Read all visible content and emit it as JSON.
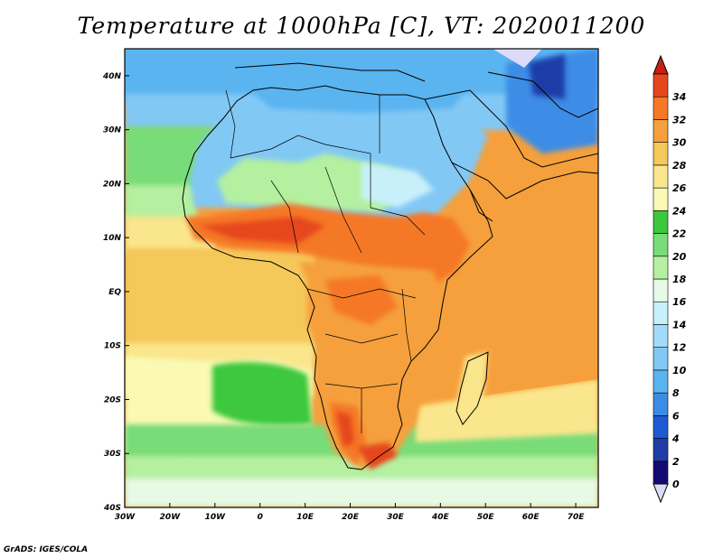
{
  "title": "Temperature at 1000hPa [C], VT: 2020011200",
  "credit": "GrADS: IGES/COLA",
  "map": {
    "lat_ticks": [
      {
        "value": 40,
        "label": "40N"
      },
      {
        "value": 30,
        "label": "30N"
      },
      {
        "value": 20,
        "label": "20N"
      },
      {
        "value": 10,
        "label": "10N"
      },
      {
        "value": 0,
        "label": "EQ"
      },
      {
        "value": -10,
        "label": "10S"
      },
      {
        "value": -20,
        "label": "20S"
      },
      {
        "value": -30,
        "label": "30S"
      },
      {
        "value": -40,
        "label": "40S"
      }
    ],
    "lon_ticks": [
      {
        "value": -30,
        "label": "30W"
      },
      {
        "value": -20,
        "label": "20W"
      },
      {
        "value": -10,
        "label": "10W"
      },
      {
        "value": 0,
        "label": "0"
      },
      {
        "value": 10,
        "label": "10E"
      },
      {
        "value": 20,
        "label": "20E"
      },
      {
        "value": 30,
        "label": "30E"
      },
      {
        "value": 40,
        "label": "40E"
      },
      {
        "value": 50,
        "label": "50E"
      },
      {
        "value": 60,
        "label": "60E"
      },
      {
        "value": 70,
        "label": "70E"
      }
    ],
    "lat_range": [
      -40,
      45
    ],
    "lon_range": [
      -30,
      75
    ]
  },
  "colorbar": {
    "labels": [
      "0",
      "2",
      "4",
      "6",
      "8",
      "10",
      "12",
      "14",
      "16",
      "18",
      "20",
      "22",
      "24",
      "26",
      "28",
      "30",
      "32",
      "34"
    ],
    "colors": [
      "#140a73",
      "#1e3ca5",
      "#1e5ad2",
      "#3c8ce6",
      "#5ab4f0",
      "#82c8f5",
      "#a0dcfa",
      "#c8f0fa",
      "#e6fae6",
      "#b4f0a0",
      "#78dc78",
      "#3cc83c",
      "#fafab4",
      "#fae68c",
      "#f5c85a",
      "#f5a03c",
      "#f57828",
      "#e6461e"
    ],
    "under_color": "#dcdcfa",
    "over_color": "#c81e14"
  }
}
